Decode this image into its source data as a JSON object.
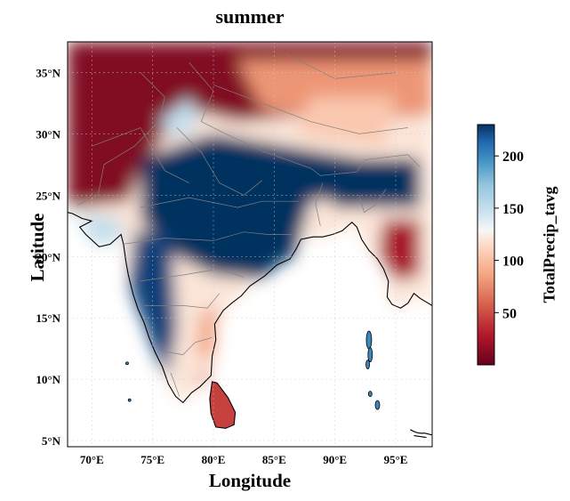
{
  "title": "summer",
  "axes": {
    "xlabel": "Longitude",
    "ylabel": "Latitude",
    "x_range": [
      68,
      98
    ],
    "y_range": [
      4.5,
      37.5
    ],
    "x_ticks": [
      {
        "value": 70,
        "label": "70°E"
      },
      {
        "value": 75,
        "label": "75°E"
      },
      {
        "value": 80,
        "label": "80°E"
      },
      {
        "value": 85,
        "label": "85°E"
      },
      {
        "value": 90,
        "label": "90°E"
      },
      {
        "value": 95,
        "label": "95°E"
      }
    ],
    "y_ticks": [
      {
        "value": 5,
        "label": "5°N"
      },
      {
        "value": 10,
        "label": "10°N"
      },
      {
        "value": 15,
        "label": "15°N"
      },
      {
        "value": 20,
        "label": "20°N"
      },
      {
        "value": 25,
        "label": "25°N"
      },
      {
        "value": 30,
        "label": "30°N"
      },
      {
        "value": 35,
        "label": "35°N"
      }
    ],
    "grid": true
  },
  "colorbar": {
    "label": "TotalPrecip_tavg",
    "colormap": "RdBu",
    "range": [
      0,
      230
    ],
    "ticks": [
      {
        "value": 50,
        "label": "50"
      },
      {
        "value": 100,
        "label": "100"
      },
      {
        "value": 150,
        "label": "150"
      },
      {
        "value": 200,
        "label": "200"
      }
    ]
  },
  "colors": {
    "dark_red": "#67001f",
    "red": "#b2182b",
    "light_red": "#ef8a62",
    "pale": "#fddbc7",
    "white": "#f7f7f7",
    "pale_blue": "#d1e5f0",
    "light_blue": "#67a9cf",
    "blue": "#2166ac",
    "dark_blue": "#053061"
  },
  "chart_data": {
    "type": "heatmap",
    "variable": "TotalPrecip_tavg",
    "x_range": [
      68,
      98
    ],
    "y_range": [
      4.5,
      37.5
    ],
    "value_range": [
      0,
      230
    ],
    "regions": [
      {
        "lon": [
          68,
          98
        ],
        "lat": [
          30,
          37.5
        ],
        "value": 10
      },
      {
        "lon": [
          68,
          80
        ],
        "lat": [
          24,
          33
        ],
        "value": 15
      },
      {
        "lon": [
          70,
          75
        ],
        "lat": [
          20,
          24
        ],
        "value": 140
      },
      {
        "lon": [
          76,
          94
        ],
        "lat": [
          19,
          27
        ],
        "value": 225
      },
      {
        "lon": [
          73,
          77
        ],
        "lat": [
          8,
          21
        ],
        "value": 225
      },
      {
        "lon": [
          78,
          82
        ],
        "lat": [
          10,
          16
        ],
        "value": 80
      },
      {
        "lon": [
          80,
          82
        ],
        "lat": [
          6,
          10
        ],
        "value": 40
      },
      {
        "lon": [
          93,
          96
        ],
        "lat": [
          19,
          23
        ],
        "value": 25
      },
      {
        "lon": [
          88,
          97
        ],
        "lat": [
          25,
          28
        ],
        "value": 225
      },
      {
        "lon": [
          84,
          95
        ],
        "lat": [
          28,
          32
        ],
        "value": 90
      }
    ]
  }
}
